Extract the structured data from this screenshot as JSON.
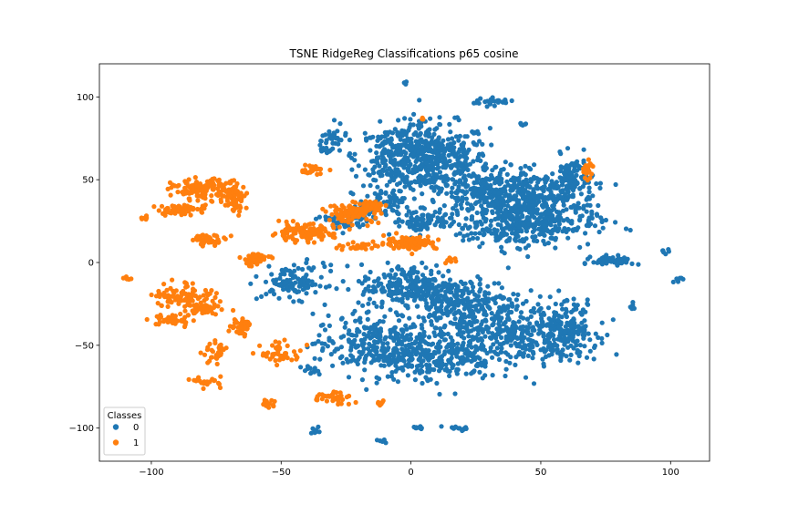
{
  "chart_data": {
    "type": "scatter",
    "title": "TSNE RidgeReg Classifications p65 cosine",
    "xlabel": "",
    "ylabel": "",
    "xlim": [
      -120,
      115
    ],
    "ylim": [
      -120,
      120
    ],
    "xticks": [
      -100,
      -50,
      0,
      50,
      100
    ],
    "yticks": [
      -100,
      -50,
      0,
      50,
      100
    ],
    "grid": false,
    "legend": {
      "title": "Classes",
      "placement": "lower-left"
    },
    "series": [
      {
        "name": "0",
        "color": "#1f77b4",
        "clusters": [
          {
            "cx": 8,
            "cy": 62,
            "rx": 22,
            "ry": 22,
            "n": 420
          },
          {
            "cx": -5,
            "cy": 65,
            "rx": 16,
            "ry": 18,
            "n": 180
          },
          {
            "cx": 30,
            "cy": 42,
            "rx": 20,
            "ry": 16,
            "n": 260
          },
          {
            "cx": 50,
            "cy": 35,
            "rx": 22,
            "ry": 20,
            "n": 300
          },
          {
            "cx": 62,
            "cy": 50,
            "rx": 8,
            "ry": 14,
            "n": 120
          },
          {
            "cx": 40,
            "cy": 22,
            "rx": 30,
            "ry": 12,
            "n": 240
          },
          {
            "cx": -12,
            "cy": 35,
            "rx": 8,
            "ry": 8,
            "n": 60
          },
          {
            "cx": 0,
            "cy": -15,
            "rx": 20,
            "ry": 14,
            "n": 240
          },
          {
            "cx": 20,
            "cy": -25,
            "rx": 22,
            "ry": 16,
            "n": 260
          },
          {
            "cx": -15,
            "cy": -50,
            "rx": 22,
            "ry": 18,
            "n": 260
          },
          {
            "cx": 10,
            "cy": -55,
            "rx": 22,
            "ry": 16,
            "n": 260
          },
          {
            "cx": 40,
            "cy": -45,
            "rx": 24,
            "ry": 18,
            "n": 300
          },
          {
            "cx": 60,
            "cy": -40,
            "rx": 12,
            "ry": 18,
            "n": 160
          },
          {
            "cx": -45,
            "cy": -12,
            "rx": 12,
            "ry": 10,
            "n": 110
          },
          {
            "cx": -25,
            "cy": 25,
            "rx": 10,
            "ry": 6,
            "n": 60
          },
          {
            "cx": 5,
            "cy": 25,
            "rx": 12,
            "ry": 6,
            "n": 80
          },
          {
            "cx": 78,
            "cy": 1,
            "rx": 8,
            "ry": 3,
            "n": 60
          },
          {
            "cx": 31,
            "cy": 97,
            "rx": 8,
            "ry": 2,
            "n": 30
          },
          {
            "cx": -30,
            "cy": 75,
            "rx": 5,
            "ry": 8,
            "n": 30
          },
          {
            "cx": -33,
            "cy": 68,
            "rx": 3,
            "ry": 1.5,
            "n": 12
          },
          {
            "cx": -38,
            "cy": -65,
            "rx": 4,
            "ry": 3,
            "n": 12
          },
          {
            "cx": 3,
            "cy": -100,
            "rx": 3,
            "ry": 1.5,
            "n": 10
          },
          {
            "cx": 17,
            "cy": -100,
            "rx": 5,
            "ry": 1.5,
            "n": 12
          },
          {
            "cx": -12,
            "cy": -108,
            "rx": 2,
            "ry": 1.5,
            "n": 6
          },
          {
            "cx": -37,
            "cy": -102,
            "rx": 2,
            "ry": 3,
            "n": 8
          },
          {
            "cx": 98,
            "cy": 6,
            "rx": 1.5,
            "ry": 2,
            "n": 6
          },
          {
            "cx": 103,
            "cy": -10,
            "rx": 2,
            "ry": 2,
            "n": 6
          },
          {
            "cx": 85,
            "cy": -26,
            "rx": 1.5,
            "ry": 2,
            "n": 6
          },
          {
            "cx": 43,
            "cy": 83,
            "rx": 2,
            "ry": 1.5,
            "n": 6
          },
          {
            "cx": -2,
            "cy": 109,
            "rx": 1,
            "ry": 1.5,
            "n": 4
          }
        ]
      },
      {
        "name": "1",
        "color": "#ff7f0e",
        "clusters": [
          {
            "cx": -80,
            "cy": 44,
            "rx": 12,
            "ry": 6,
            "n": 120
          },
          {
            "cx": -68,
            "cy": 40,
            "rx": 4,
            "ry": 10,
            "n": 60
          },
          {
            "cx": -88,
            "cy": 32,
            "rx": 10,
            "ry": 3,
            "n": 60
          },
          {
            "cx": -78,
            "cy": 14,
            "rx": 7,
            "ry": 3,
            "n": 40
          },
          {
            "cx": -87,
            "cy": -20,
            "rx": 12,
            "ry": 8,
            "n": 100
          },
          {
            "cx": -92,
            "cy": -35,
            "rx": 8,
            "ry": 4,
            "n": 40
          },
          {
            "cx": -80,
            "cy": -28,
            "rx": 6,
            "ry": 3,
            "n": 40
          },
          {
            "cx": -66,
            "cy": -38,
            "rx": 4,
            "ry": 6,
            "n": 40
          },
          {
            "cx": -60,
            "cy": 2,
            "rx": 6,
            "ry": 4,
            "n": 40
          },
          {
            "cx": -42,
            "cy": 18,
            "rx": 12,
            "ry": 5,
            "n": 120
          },
          {
            "cx": -22,
            "cy": 30,
            "rx": 10,
            "ry": 6,
            "n": 100
          },
          {
            "cx": -15,
            "cy": 34,
            "rx": 5,
            "ry": 3,
            "n": 60
          },
          {
            "cx": 0,
            "cy": 12,
            "rx": 10,
            "ry": 4,
            "n": 100
          },
          {
            "cx": -20,
            "cy": 10,
            "rx": 8,
            "ry": 3,
            "n": 30
          },
          {
            "cx": -50,
            "cy": -55,
            "rx": 8,
            "ry": 6,
            "n": 50
          },
          {
            "cx": -30,
            "cy": -82,
            "rx": 8,
            "ry": 5,
            "n": 40
          },
          {
            "cx": -75,
            "cy": -55,
            "rx": 5,
            "ry": 6,
            "n": 30
          },
          {
            "cx": -78,
            "cy": -72,
            "rx": 5,
            "ry": 3,
            "n": 20
          },
          {
            "cx": -55,
            "cy": -85,
            "rx": 3,
            "ry": 3,
            "n": 15
          },
          {
            "cx": -38,
            "cy": 56,
            "rx": 5,
            "ry": 3,
            "n": 25
          },
          {
            "cx": 68,
            "cy": 57,
            "rx": 2,
            "ry": 6,
            "n": 25
          },
          {
            "cx": -103,
            "cy": 27,
            "rx": 2,
            "ry": 1.5,
            "n": 6
          },
          {
            "cx": -108,
            "cy": -10,
            "rx": 3,
            "ry": 1.5,
            "n": 6
          },
          {
            "cx": -12,
            "cy": -85,
            "rx": 2,
            "ry": 1.5,
            "n": 6
          },
          {
            "cx": 15,
            "cy": 1,
            "rx": 3,
            "ry": 1.5,
            "n": 8
          },
          {
            "cx": 5,
            "cy": 87,
            "rx": 1,
            "ry": 1,
            "n": 3
          }
        ]
      }
    ]
  }
}
